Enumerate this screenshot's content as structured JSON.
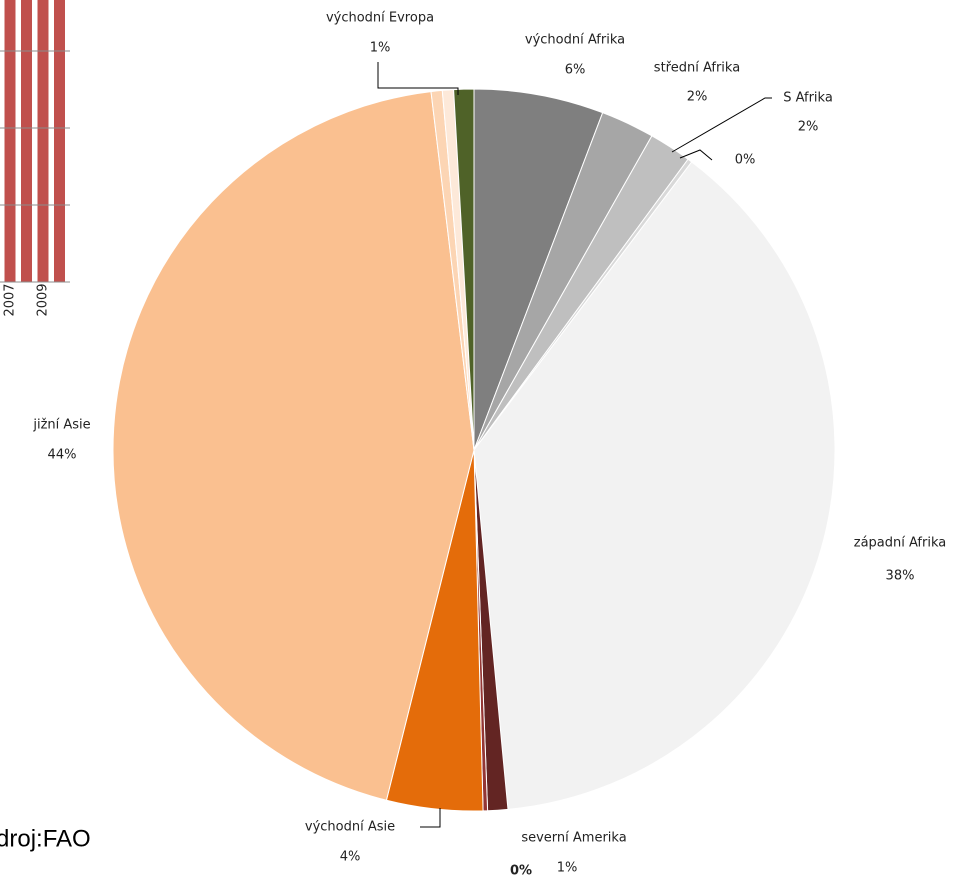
{
  "chart_data": [
    {
      "type": "pie",
      "categories": [
        "východní Afrika",
        "střední Afrika",
        "S Afrika",
        null,
        "západní Afrika",
        "severní Amerika",
        null,
        "východní Asie",
        "jižní Asie",
        null,
        null,
        "východní Evropa"
      ],
      "values": [
        5.8,
        2.4,
        1.9,
        0.2,
        38.2,
        0.9,
        0.2,
        4.3,
        44.2,
        0.5,
        0.5,
        0.9
      ],
      "value_labels": [
        "6%",
        "2%",
        "2%",
        "0%",
        "38%",
        "1%",
        "0%",
        "4%",
        "44%",
        null,
        null,
        "1%"
      ],
      "colors": [
        "#7f7f7f",
        "#a6a6a6",
        "#bfbfbf",
        "#d9d9d9",
        "#f2f2f2",
        "#632523",
        "#943634",
        "#e46c0a",
        "#fac090",
        "#fcd5b4",
        "#fde9d9",
        "#4f6228"
      ]
    },
    {
      "type": "bar",
      "categories": [
        null,
        "2007",
        null,
        "2009",
        null
      ],
      "values": [
        4,
        4,
        4,
        4,
        4
      ],
      "color": "#c0504d",
      "ylim": [
        0,
        3.6
      ],
      "yticks": [
        0,
        1,
        2,
        3
      ],
      "grid": true
    }
  ],
  "source": "droj:FAO"
}
